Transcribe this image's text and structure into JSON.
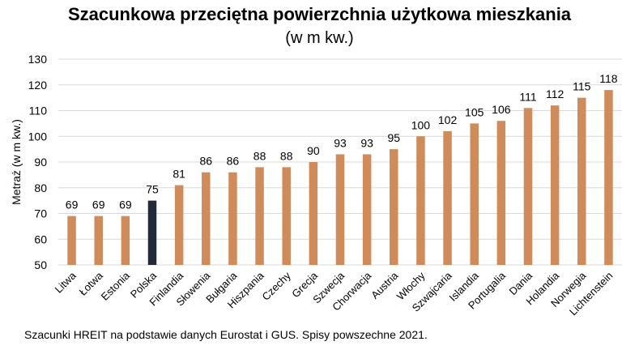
{
  "chart_data": {
    "type": "bar",
    "title": "Szacunkowa przeciętna powierzchnia użytkowa mieszkania",
    "subtitle": "(w m kw.)",
    "ylabel": "Metraż (w m kw.)",
    "xlabel": "",
    "ylim": [
      50,
      130
    ],
    "yticks": [
      50,
      60,
      70,
      80,
      90,
      100,
      110,
      120,
      130
    ],
    "grid": true,
    "categories": [
      "Litwa",
      "Łotwa",
      "Estonia",
      "Polska",
      "Finlandia",
      "Słowenia",
      "Bułgaria",
      "Hiszpania",
      "Czechy",
      "Grecja",
      "Szwecja",
      "Chorwacja",
      "Austria",
      "Włochy",
      "Szwajcaria",
      "Islandia",
      "Portugalia",
      "Dania",
      "Holandia",
      "Norwegia",
      "Lichtenstein"
    ],
    "values": [
      69,
      69,
      69,
      75,
      81,
      86,
      86,
      88,
      88,
      90,
      93,
      93,
      95,
      100,
      102,
      105,
      106,
      111,
      112,
      115,
      118
    ],
    "labels": [
      "69",
      "69",
      "69",
      "75",
      "81",
      "86",
      "86",
      "88",
      "88",
      "90",
      "93",
      "93",
      "95",
      "100",
      "102",
      "105",
      "106",
      "111",
      "112",
      "115",
      "118"
    ],
    "bar_color": "#d08b5b",
    "highlight_category": "Polska",
    "highlight_color": "#232a3a",
    "grid_color": "#d9d9d9"
  },
  "footnote": "Szacunki HREIT na podstawie danych Eurostat i GUS. Spisy powszechne 2021."
}
